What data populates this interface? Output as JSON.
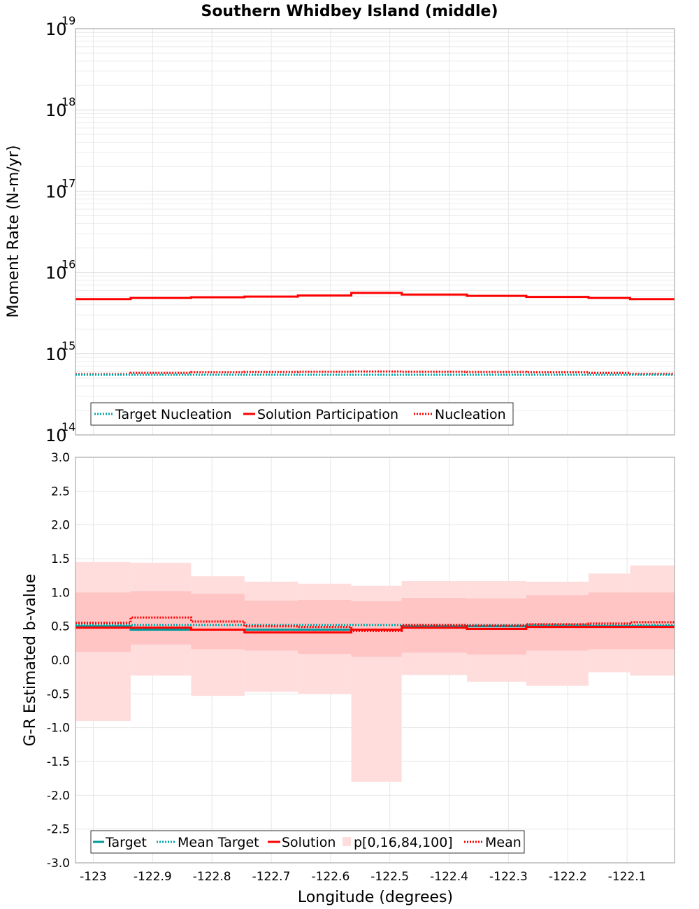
{
  "chart_data": {
    "type": "line",
    "title": "Southern Whidbey Island (middle)",
    "xlabel": "Longitude (degrees)",
    "xlim": [
      -123.03,
      -122.02
    ],
    "xticks": [
      -123,
      -122.9,
      -122.8,
      -122.7,
      -122.6,
      -122.5,
      -122.4,
      -122.3,
      -122.2,
      -122.1
    ],
    "xtick_labels": [
      "-123",
      "-122.9",
      "-122.8",
      "-122.7",
      "-122.6",
      "-122.5",
      "-122.4",
      "-122.3",
      "-122.2",
      "-122.1"
    ],
    "bin_edges": [
      -123.03,
      -122.937,
      -122.835,
      -122.745,
      -122.655,
      -122.565,
      -122.48,
      -122.37,
      -122.27,
      -122.165,
      -122.095,
      -122.02
    ],
    "panels": [
      {
        "name": "moment-rate",
        "ylabel": "Moment Rate (N-m/yr)",
        "yscale": "log",
        "ylim": [
          100000000000000.0,
          1e+19
        ],
        "ytick_exponents": [
          14,
          15,
          16,
          17,
          18,
          19
        ],
        "ytick_base": "10",
        "legend": {
          "placement": "bottom-left",
          "entries": [
            "Target Nucleation",
            "Solution Participation",
            "Nucleation"
          ]
        },
        "series": [
          {
            "name": "Solution Participation",
            "style": "solid",
            "color": "#ff0000",
            "values": [
              4700000000000000.0,
              4850000000000000.0,
              4950000000000000.0,
              5050000000000000.0,
              5200000000000000.0,
              5600000000000000.0,
              5350000000000000.0,
              5150000000000000.0,
              5000000000000000.0,
              4850000000000000.0,
              4700000000000000.0
            ]
          },
          {
            "name": "Nucleation",
            "style": "dotted",
            "color": "#ff0000",
            "values": [
              560000000000000.0,
              580000000000000.0,
              590000000000000.0,
              595000000000000.0,
              600000000000000.0,
              605000000000000.0,
              600000000000000.0,
              595000000000000.0,
              590000000000000.0,
              580000000000000.0,
              565000000000000.0
            ]
          },
          {
            "name": "Target Nucleation",
            "style": "dotted",
            "color": "#00aaaa",
            "values": [
              550000000000000.0,
              550000000000000.0,
              550000000000000.0,
              550000000000000.0,
              550000000000000.0,
              550000000000000.0,
              550000000000000.0,
              550000000000000.0,
              550000000000000.0,
              550000000000000.0,
              550000000000000.0
            ]
          }
        ]
      },
      {
        "name": "b-value",
        "ylabel": "G-R Estimated b-value",
        "yscale": "linear",
        "ylim": [
          -3.0,
          3.0
        ],
        "yticks": [
          3.0,
          2.5,
          2.0,
          1.5,
          1.0,
          0.5,
          0.0,
          -0.5,
          -1.0,
          -1.5,
          -2.0,
          -2.5,
          -3.0
        ],
        "ytick_labels": [
          "3.0",
          "2.5",
          "2.0",
          "1.5",
          "1.0",
          "0.5",
          "0.0",
          "-0.5",
          "-1.0",
          "-1.5",
          "-2.0",
          "-2.5",
          "-3.0"
        ],
        "legend": {
          "placement": "bottom-left",
          "entries": [
            "Target",
            "Mean Target",
            "Solution",
            "p[0,16,84,100]",
            "Mean"
          ]
        },
        "bands": [
          {
            "name": "p0-p100",
            "color": "#ffdddd",
            "low": [
              -0.9,
              -0.23,
              -0.53,
              -0.47,
              -0.5,
              -1.8,
              -0.22,
              -0.32,
              -0.38,
              -0.18,
              -0.23
            ],
            "high": [
              1.45,
              1.44,
              1.24,
              1.16,
              1.13,
              1.1,
              1.17,
              1.17,
              1.16,
              1.28,
              1.4
            ]
          },
          {
            "name": "p16-p84",
            "color": "#ffc4c4",
            "low": [
              0.12,
              0.23,
              0.16,
              0.14,
              0.09,
              0.05,
              0.11,
              0.08,
              0.14,
              0.16,
              0.16
            ],
            "high": [
              1.0,
              1.02,
              0.98,
              0.88,
              0.89,
              0.87,
              0.92,
              0.91,
              0.96,
              1.0,
              1.0
            ]
          }
        ],
        "series": [
          {
            "name": "Target",
            "style": "solid",
            "color": "#009999",
            "values": [
              0.5,
              0.45,
              0.45,
              0.45,
              0.45,
              0.45,
              0.5,
              0.5,
              0.5,
              0.5,
              0.5
            ]
          },
          {
            "name": "Mean Target",
            "style": "dotted",
            "color": "#00aaaa",
            "values": [
              0.52,
              0.52,
              0.52,
              0.52,
              0.52,
              0.52,
              0.52,
              0.52,
              0.52,
              0.52,
              0.52
            ]
          },
          {
            "name": "Mean",
            "style": "dotted",
            "color": "#ff0000",
            "values": [
              0.55,
              0.63,
              0.57,
              0.5,
              0.49,
              0.43,
              0.52,
              0.51,
              0.53,
              0.54,
              0.56
            ]
          },
          {
            "name": "Solution",
            "style": "solid",
            "color": "#ff0000",
            "values": [
              0.48,
              0.48,
              0.45,
              0.41,
              0.41,
              0.45,
              0.48,
              0.46,
              0.49,
              0.49,
              0.49
            ]
          }
        ]
      }
    ]
  }
}
